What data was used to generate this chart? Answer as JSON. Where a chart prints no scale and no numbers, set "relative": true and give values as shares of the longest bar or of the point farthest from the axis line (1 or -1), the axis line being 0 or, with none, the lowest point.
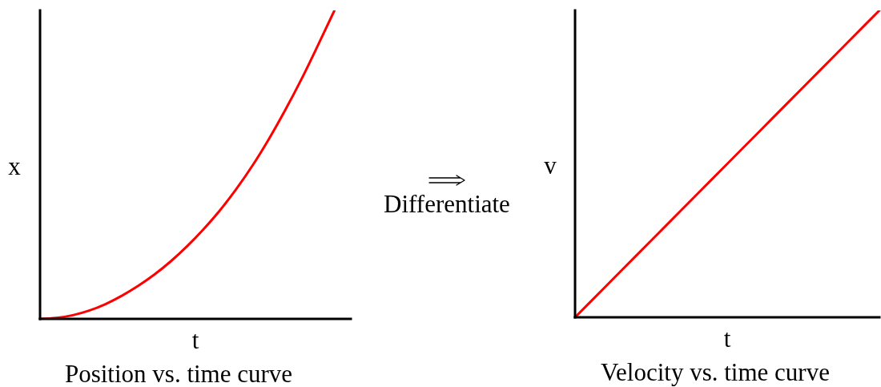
{
  "chart_data": [
    {
      "type": "line",
      "title": "Position vs. time curve",
      "xlabel": "t",
      "ylabel": "x",
      "relative": true,
      "categories": [
        null,
        null,
        null,
        null,
        null,
        null,
        null,
        null,
        null,
        null,
        null,
        null,
        null,
        null,
        null,
        null,
        null,
        null,
        null,
        null
      ],
      "values": [
        0,
        0.003,
        0.012,
        0.027,
        0.048,
        0.075,
        0.107,
        0.144,
        0.187,
        0.236,
        0.291,
        0.352,
        0.421,
        0.498,
        0.584,
        0.678,
        0.779,
        0.888,
        1,
        null
      ],
      "color": "#ff0000",
      "annotations": [
        "Differentiate"
      ]
    },
    {
      "type": "line",
      "title": "Velocity vs. time curve",
      "xlabel": "t",
      "ylabel": "v",
      "relative": true,
      "categories": [
        null,
        null,
        null,
        null,
        null,
        null,
        null,
        null,
        null,
        null,
        null
      ],
      "values": [
        0,
        0.1,
        0.2,
        0.3,
        0.4,
        0.5,
        0.6,
        0.7,
        0.8,
        0.9,
        1
      ],
      "color": "#ff0000"
    }
  ]
}
